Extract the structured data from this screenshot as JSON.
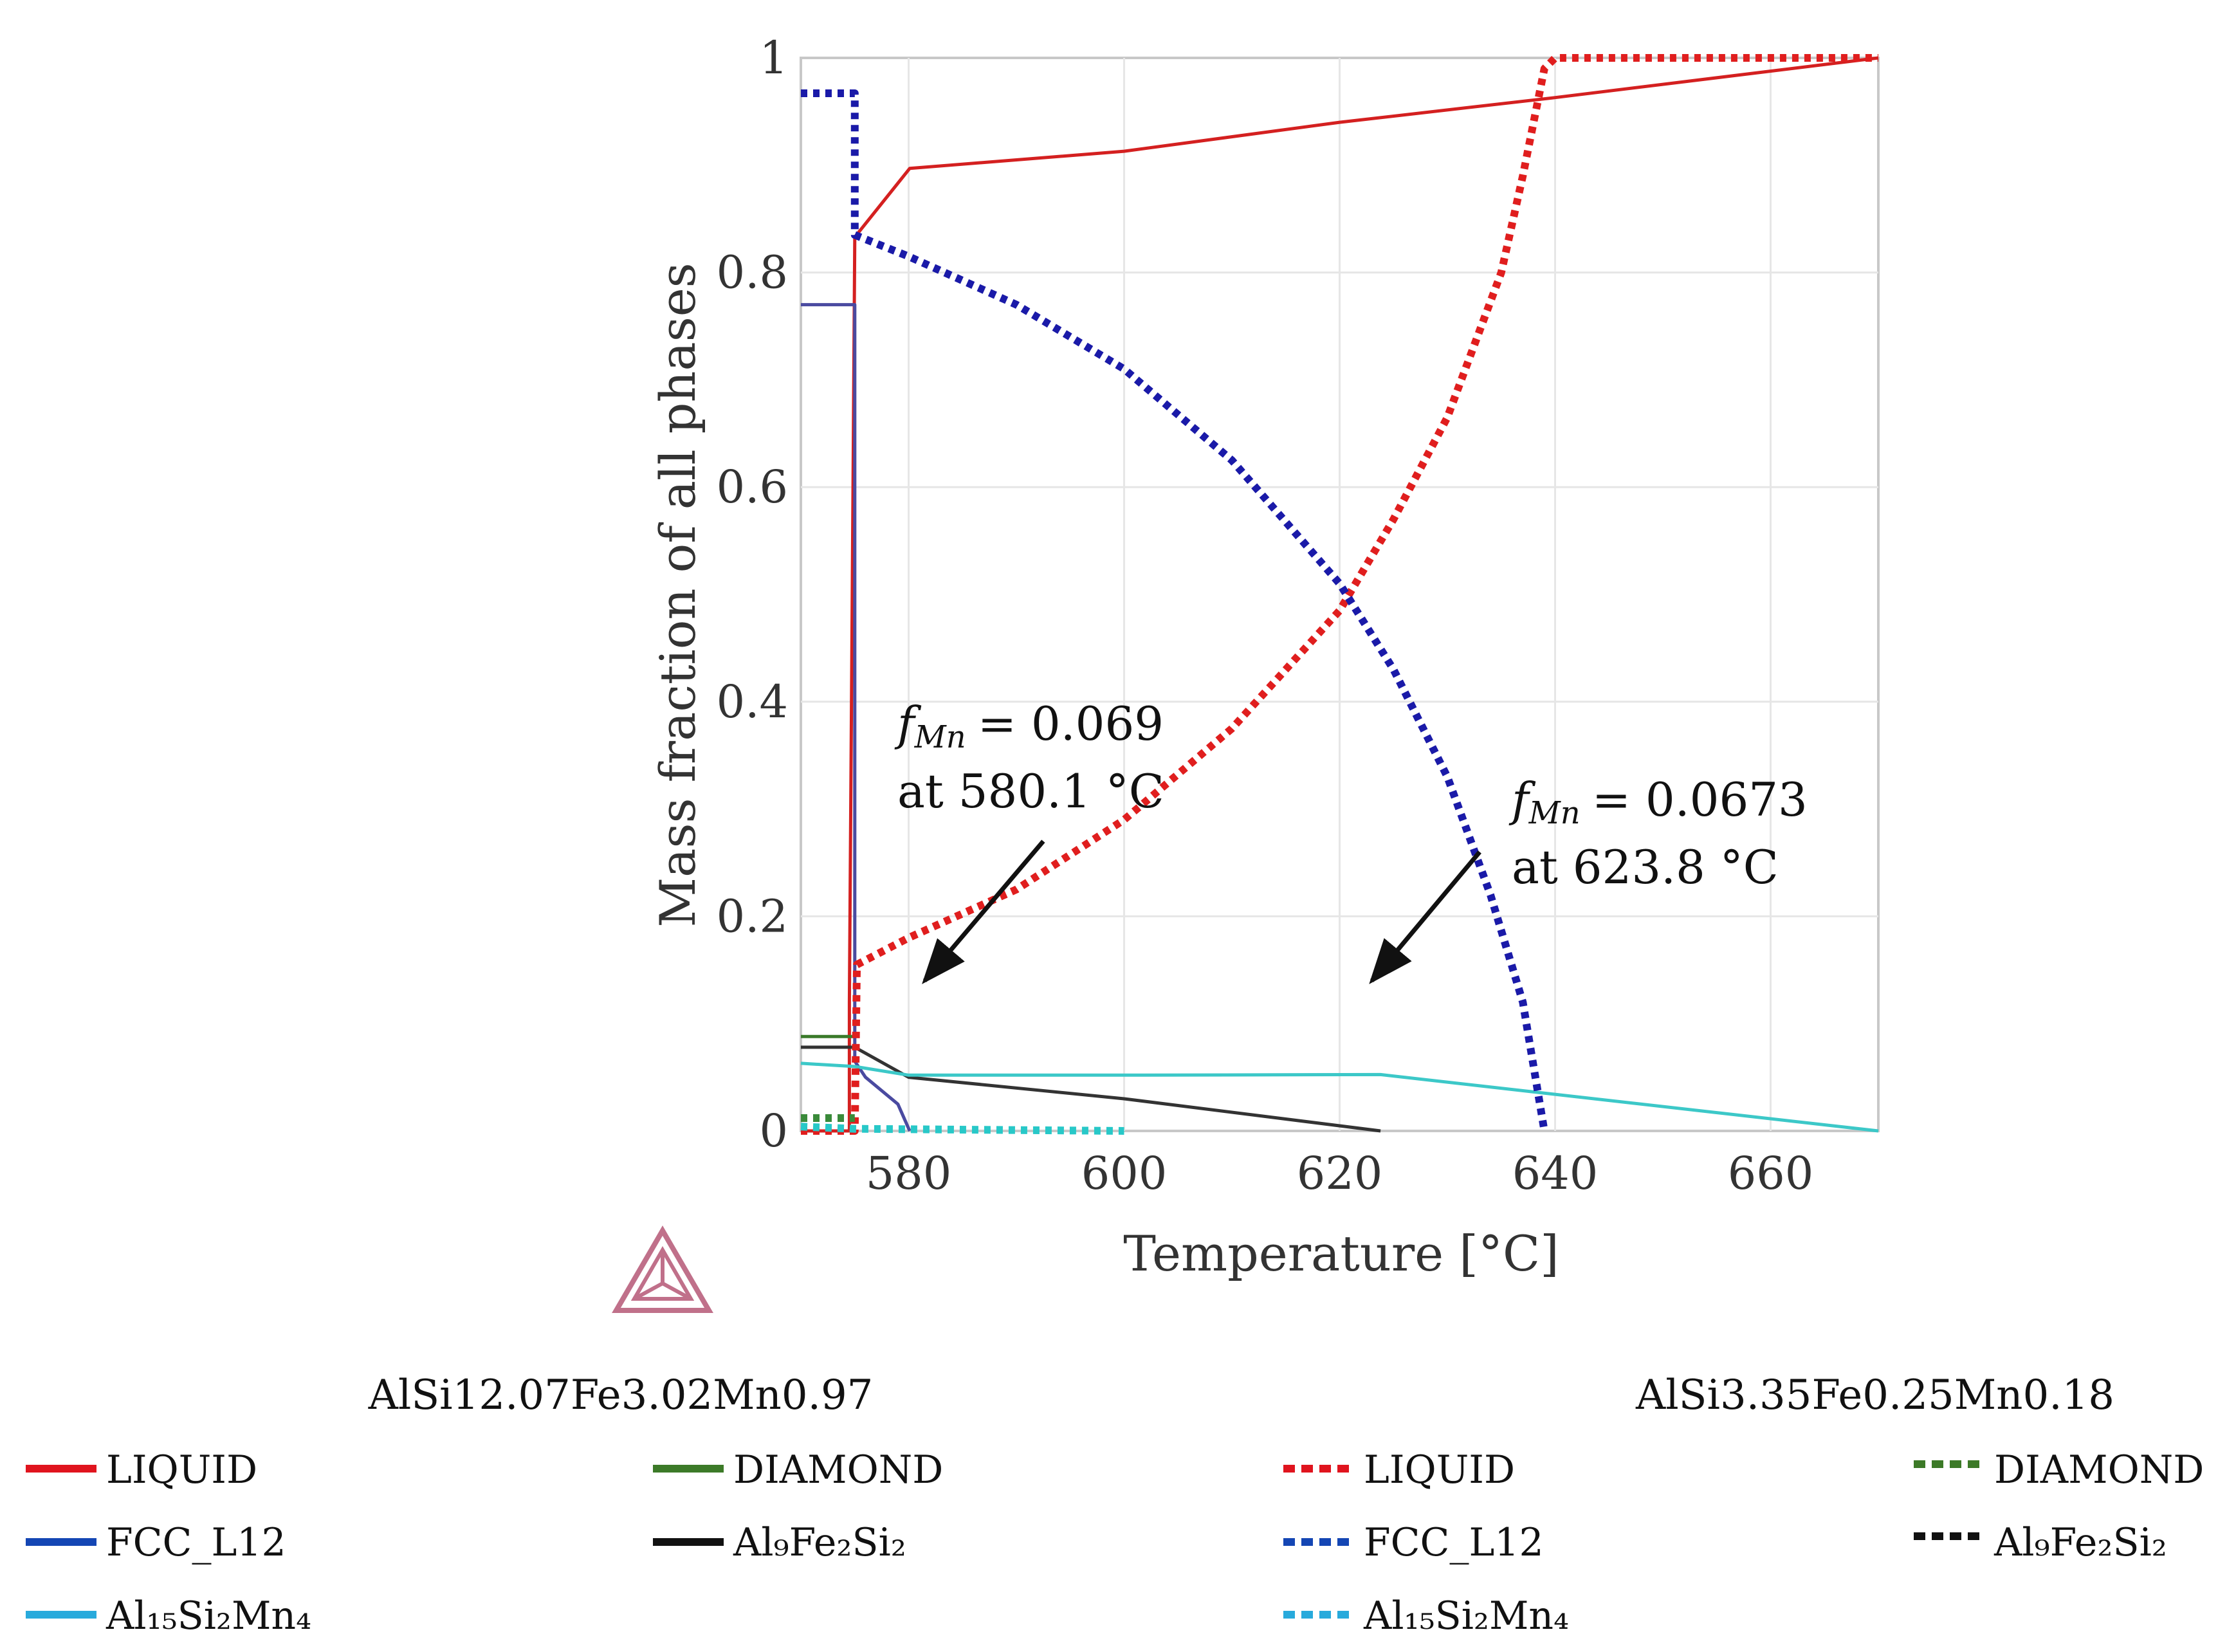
{
  "chart_data": {
    "type": "line",
    "title": "",
    "xlabel": "Temperature [°C]",
    "ylabel": "Mass fraction of all phases",
    "xlim": [
      570,
      670
    ],
    "ylim": [
      0,
      1
    ],
    "xticks": [
      580,
      600,
      620,
      640,
      660
    ],
    "yticks": [
      0,
      0.2,
      0.4,
      0.6,
      0.8,
      1
    ],
    "ytick_labels": [
      "0",
      "0.2",
      "0.4",
      "0.6",
      "0.8",
      "1"
    ],
    "grid": true,
    "alloys": [
      {
        "name": "AlSi12.07Fe3.02Mn0.97",
        "style": "solid",
        "series": [
          {
            "phase": "LIQUID",
            "color": "#d42020",
            "legend_color": "#e0141e",
            "x": [
              570,
              574.5,
              574.5,
              575,
              580.1,
              600,
              620,
              640,
              670
            ],
            "y": [
              0,
              0,
              0.12,
              0.833,
              0.897,
              0.913,
              0.94,
              0.963,
              1.0
            ]
          },
          {
            "phase": "FCC_L12",
            "color": "#4a4aa0",
            "legend_color": "#1446b4",
            "x": [
              570,
              575,
              575,
              576,
              579,
              580.1
            ],
            "y": [
              0.77,
              0.77,
              0.065,
              0.05,
              0.025,
              0.0
            ]
          },
          {
            "phase": "DIAMOND",
            "color": "#3a7a2a",
            "legend_color": "#3c7a28",
            "x": [
              570,
              575
            ],
            "y": [
              0.088,
              0.088
            ]
          },
          {
            "phase": "Al9Fe2Si2",
            "color": "#333333",
            "legend_color": "#111111",
            "x": [
              570,
              575,
              580,
              600,
              623.8
            ],
            "y": [
              0.078,
              0.078,
              0.05,
              0.03,
              0.0
            ]
          },
          {
            "phase": "Al15Si2Mn4",
            "color": "#3cc8c8",
            "legend_color": "#28aadc",
            "x": [
              570,
              575,
              580,
              600,
              623.8,
              670
            ],
            "y": [
              0.063,
              0.06,
              0.052,
              0.052,
              0.0525,
              0.0
            ]
          }
        ]
      },
      {
        "name": "AlSi3.35Fe0.25Mn0.18",
        "style": "dotted",
        "series": [
          {
            "phase": "LIQUID",
            "color": "#e01e1e",
            "legend_color": "#e0141e",
            "x": [
              570,
              575,
              575.2,
              580,
              590,
              600,
              610,
              620,
              625,
              630,
              635,
              637,
              639,
              640,
              670
            ],
            "y": [
              0,
              0,
              0.155,
              0.18,
              0.225,
              0.29,
              0.375,
              0.485,
              0.57,
              0.665,
              0.8,
              0.89,
              0.99,
              1.0,
              1.0
            ]
          },
          {
            "phase": "FCC_L12",
            "color": "#1a1aa8",
            "legend_color": "#1446b4",
            "x": [
              570,
              575,
              575,
              580,
              590,
              600,
              610,
              620,
              625,
              630,
              634,
              637,
              639
            ],
            "y": [
              0.967,
              0.967,
              0.835,
              0.815,
              0.77,
              0.71,
              0.625,
              0.51,
              0.43,
              0.33,
              0.22,
              0.12,
              0.0
            ]
          },
          {
            "phase": "DIAMOND",
            "color": "#3a8a3a",
            "legend_color": "#3c7a28",
            "x": [
              570,
              575
            ],
            "y": [
              0.012,
              0.012
            ]
          },
          {
            "phase": "Al9Fe2Si2",
            "color": "#111111",
            "legend_color": "#111111",
            "x": [],
            "y": []
          },
          {
            "phase": "Al15Si2Mn4",
            "color": "#28c8c8",
            "legend_color": "#28aadc",
            "x": [
              570,
              575,
              600
            ],
            "y": [
              0.004,
              0.002,
              0.0
            ]
          }
        ]
      }
    ],
    "annotations": [
      {
        "symbol": "f",
        "subscript": "Mn",
        "value": "= 0.069",
        "line2": "at 580.1 °C",
        "arrow_tail": [
          592.5,
          0.27
        ],
        "arrow_head": [
          581.5,
          0.14
        ]
      },
      {
        "symbol": "f",
        "subscript": "Mn",
        "value": "= 0.0673",
        "line2": "at 623.8 °C",
        "arrow_tail": [
          633,
          0.26
        ],
        "arrow_head": [
          623,
          0.14
        ]
      }
    ]
  },
  "logo": {
    "name": "thermo-calc-logo",
    "color": "#c0708a"
  },
  "legend": {
    "left": {
      "title": "AlSi12.07Fe3.02Mn0.97",
      "entries": [
        {
          "label": "LIQUID",
          "color": "#e0141e"
        },
        {
          "label": "DIAMOND",
          "color": "#3c7a28"
        },
        {
          "label": "FCC_L12",
          "color": "#1446b4"
        },
        {
          "label": "Al₉Fe₂Si₂",
          "color": "#111111"
        },
        {
          "label": "Al₁₅Si₂Mn₄",
          "color": "#28aadc"
        }
      ]
    },
    "right": {
      "title": "AlSi3.35Fe0.25Mn0.18",
      "entries": [
        {
          "label": "LIQUID",
          "color": "#e0141e"
        },
        {
          "label": "DIAMOND",
          "color": "#3c7a28"
        },
        {
          "label": "FCC_L12",
          "color": "#1446b4"
        },
        {
          "label": "Al₉Fe₂Si₂",
          "color": "#111111"
        },
        {
          "label": "Al₁₅Si₂Mn₄",
          "color": "#28aadc"
        }
      ]
    }
  }
}
